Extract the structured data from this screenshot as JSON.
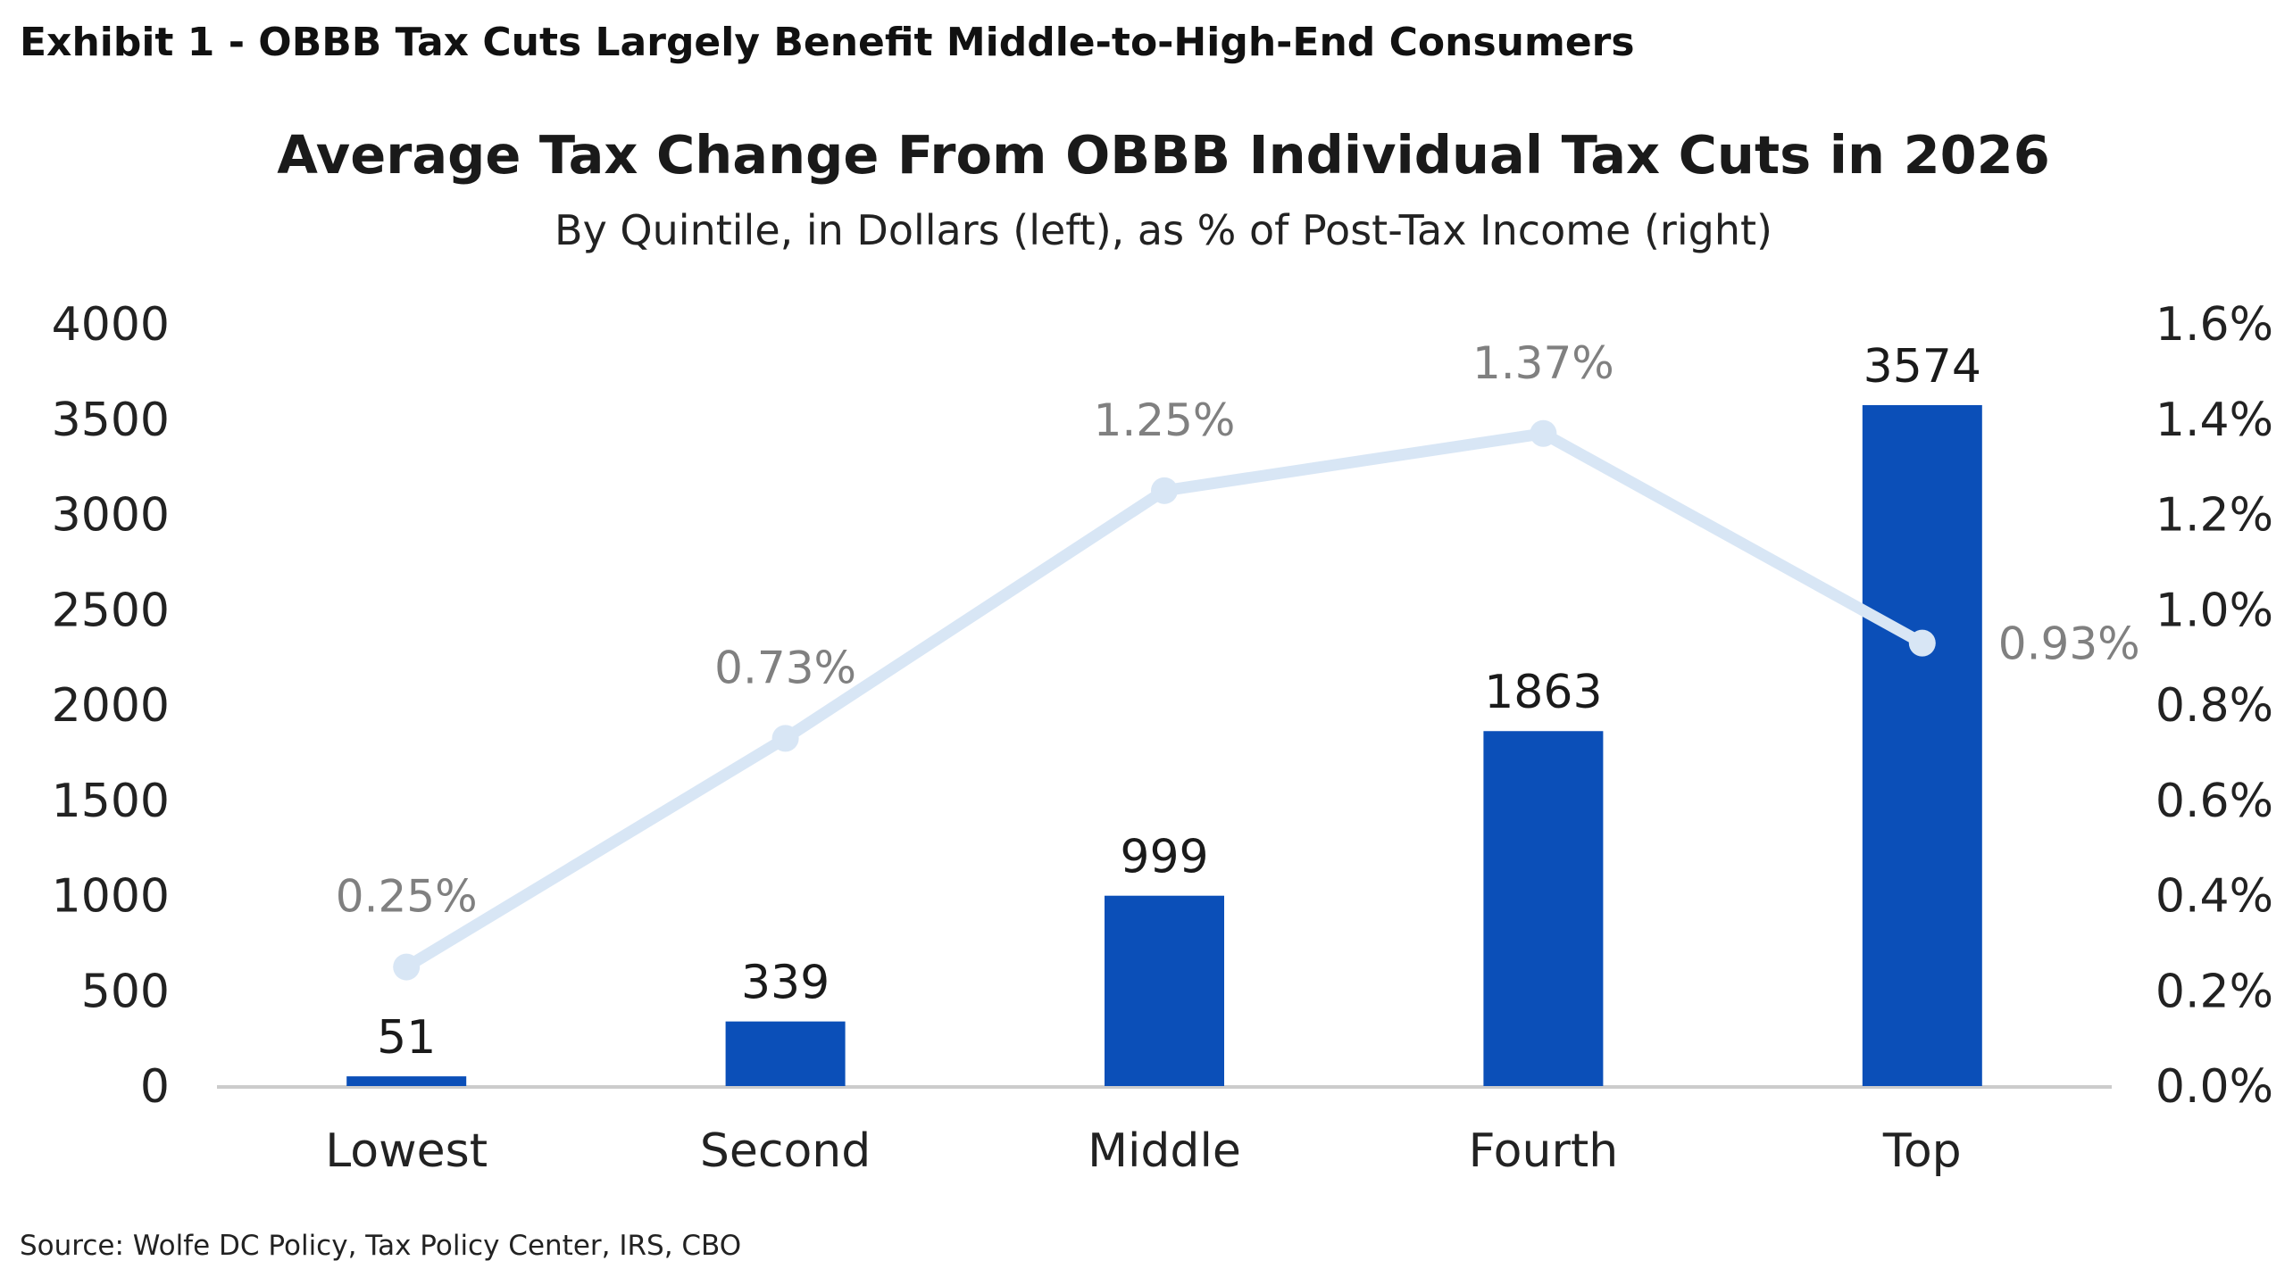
{
  "exhibit_title": "Exhibit 1 - OBBB Tax Cuts Largely Benefit Middle-to-High-End Consumers",
  "source": "Source: Wolfe DC Policy, Tax Policy Center, IRS, CBO",
  "colors": {
    "bar": "#0b4fb8",
    "line": "#d8e6f5",
    "axis": "#cccccc"
  },
  "chart_data": {
    "type": "bar",
    "title": "Average Tax Change From OBBB Individual Tax Cuts in 2026",
    "subtitle": "By Quintile, in Dollars (left), as % of Post-Tax Income (right)",
    "categories": [
      "Lowest",
      "Second",
      "Middle",
      "Fourth",
      "Top"
    ],
    "series": [
      {
        "type": "bar",
        "axis": "left",
        "values": [
          51,
          339,
          999,
          1863,
          3574
        ],
        "labels": [
          "51",
          "339",
          "999",
          "1863",
          "3574"
        ]
      },
      {
        "type": "line",
        "axis": "right",
        "values": [
          0.25,
          0.73,
          1.25,
          1.37,
          0.93
        ],
        "labels": [
          "0.25%",
          "0.73%",
          "1.25%",
          "1.37%",
          "0.93%"
        ]
      }
    ],
    "y_left": {
      "min": 0,
      "max": 4000,
      "ticks": [
        0,
        500,
        1000,
        1500,
        2000,
        2500,
        3000,
        3500,
        4000
      ],
      "tick_labels": [
        "0",
        "500",
        "1000",
        "1500",
        "2000",
        "2500",
        "3000",
        "3500",
        "4000"
      ]
    },
    "y_right": {
      "min": 0,
      "max": 1.6,
      "ticks": [
        0,
        0.2,
        0.4,
        0.6,
        0.8,
        1.0,
        1.2,
        1.4,
        1.6
      ],
      "tick_labels": [
        "0.0%",
        "0.2%",
        "0.4%",
        "0.6%",
        "0.8%",
        "1.0%",
        "1.2%",
        "1.4%",
        "1.6%"
      ]
    },
    "grid": false,
    "legend": "none"
  }
}
